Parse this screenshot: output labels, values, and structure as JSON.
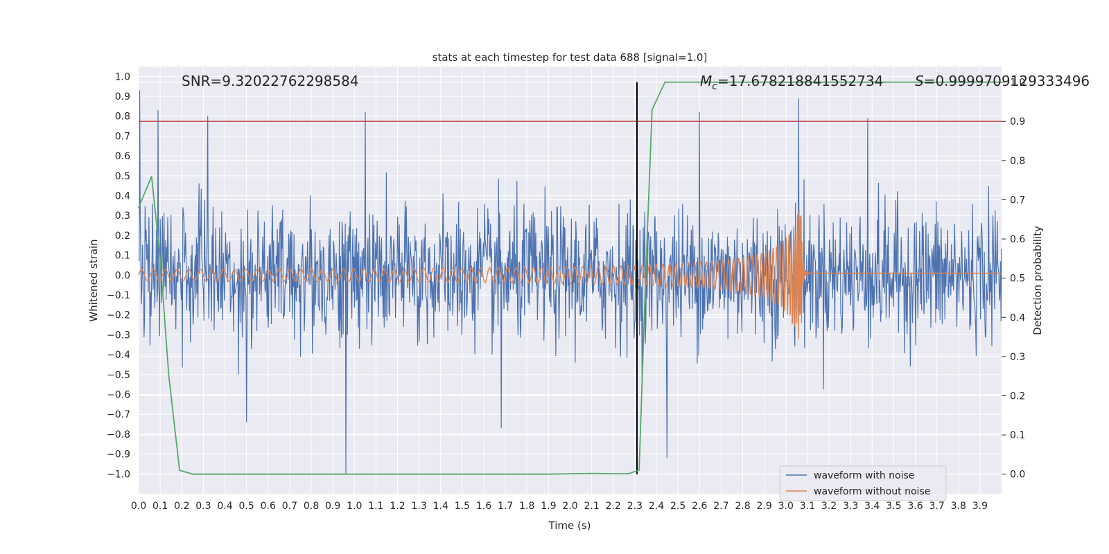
{
  "chart_data": {
    "type": "line",
    "title": "stats at each timestep for test data 688 [signal=1.0]",
    "xlabel": "Time (s)",
    "ylabel": "Whitened strain",
    "y2label": "Detection probability",
    "xlim": [
      0.0,
      4.0
    ],
    "ylim": [
      -1.1,
      1.05
    ],
    "y2lim": [
      -0.05,
      1.04
    ],
    "x_ticks": [
      "0.0",
      "0.1",
      "0.2",
      "0.3",
      "0.4",
      "0.5",
      "0.6",
      "0.7",
      "0.8",
      "0.9",
      "1.0",
      "1.1",
      "1.2",
      "1.3",
      "1.4",
      "1.5",
      "1.6",
      "1.7",
      "1.8",
      "1.9",
      "2.0",
      "2.1",
      "2.2",
      "2.3",
      "2.4",
      "2.5",
      "2.6",
      "2.7",
      "2.8",
      "2.9",
      "3.0",
      "3.1",
      "3.2",
      "3.3",
      "3.4",
      "3.5",
      "3.6",
      "3.7",
      "3.8",
      "3.9"
    ],
    "y_ticks": [
      "1.0",
      "0.9",
      "0.8",
      "0.7",
      "0.6",
      "0.5",
      "0.4",
      "0.3",
      "0.2",
      "0.1",
      "0.0",
      "−0.1",
      "−0.2",
      "−0.3",
      "−0.4",
      "−0.5",
      "−0.6",
      "−0.7",
      "−0.8",
      "−0.9",
      "−1.0"
    ],
    "y2_ticks": [
      "1.0",
      "0.9",
      "0.8",
      "0.7",
      "0.6",
      "0.5",
      "0.4",
      "0.3",
      "0.2",
      "0.1",
      "0.0"
    ],
    "grid": true,
    "legend_position": "lower-right",
    "annotations": {
      "snr": "SNR=9.32022762298584",
      "mc_symbol": "M",
      "mc_sub": "c",
      "mc_value": "=17.678218841552734",
      "s_symbol": "S",
      "s_value": "=0.9999709129333496"
    },
    "series": [
      {
        "name": "waveform with noise",
        "color": "#4c72b0",
        "axis": "left",
        "description_kind": "noise",
        "amplitude_sigma": 0.17,
        "spikes": [
          [
            0.005,
            0.93
          ],
          [
            0.09,
            0.83
          ],
          [
            0.32,
            0.8
          ],
          [
            1.05,
            0.82
          ],
          [
            2.6,
            0.82
          ],
          [
            3.06,
            0.89
          ],
          [
            3.38,
            0.79
          ],
          [
            0.96,
            -1.0
          ],
          [
            2.45,
            -0.92
          ],
          [
            0.5,
            -0.74
          ],
          [
            1.68,
            -0.77
          ]
        ]
      },
      {
        "name": "waveform without noise",
        "color": "#dd8452",
        "axis": "left",
        "description_kind": "chirp",
        "merger_time": 3.07,
        "start_amplitude": 0.02,
        "peak_amplitude": 0.39,
        "post_merger_level": 0.01
      },
      {
        "name": "",
        "color": "#55a868",
        "axis": "right",
        "x": [
          0.0,
          0.06,
          0.1,
          0.14,
          0.19,
          0.25,
          0.5,
          1.0,
          1.5,
          1.9,
          2.0,
          2.1,
          2.2,
          2.27,
          2.32,
          2.35,
          2.38,
          2.44,
          3.0,
          3.5,
          4.0
        ],
        "y": [
          0.68,
          0.76,
          0.55,
          0.25,
          0.01,
          0.0,
          0.0,
          0.0,
          0.0,
          0.0,
          0.001,
          0.002,
          0.001,
          0.001,
          0.01,
          0.5,
          0.93,
          1.0,
          1.0,
          1.0,
          1.0
        ]
      }
    ],
    "hlines": [
      {
        "axis": "right",
        "y": 0.9,
        "color": "#c44e52"
      }
    ],
    "vlines": [
      {
        "x": 2.31,
        "color": "#000000",
        "y2_range": [
          0.0,
          1.0
        ]
      }
    ]
  }
}
